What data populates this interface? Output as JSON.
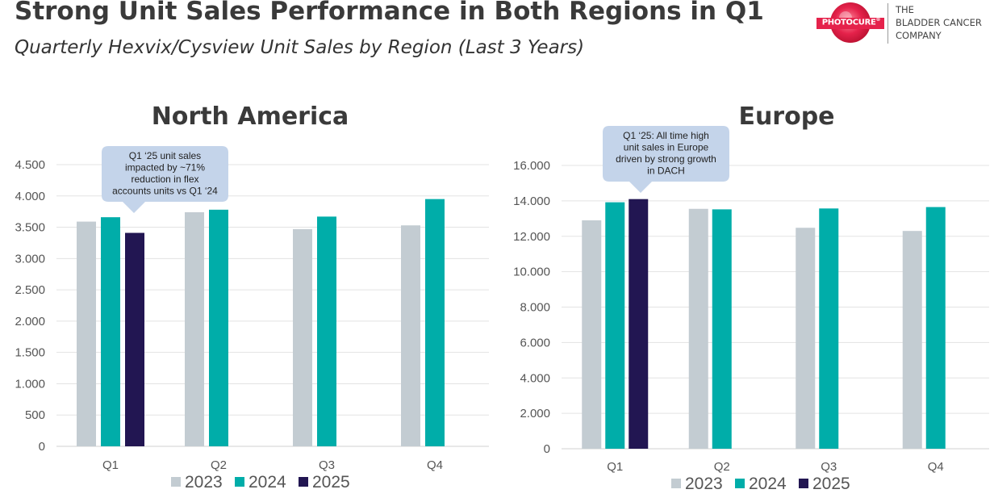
{
  "header": {
    "title": "Strong Unit Sales Performance in Both Regions in Q1",
    "subtitle": "Quarterly Hexvix/Cysview Unit Sales by Region (Last 3 Years)"
  },
  "logo": {
    "wordmark": "PHOTOCURE",
    "registered": "®",
    "tagline": [
      "THE",
      "BLADDER CANCER",
      "COMPANY"
    ],
    "color": "#e5224b"
  },
  "colors": {
    "2023": "#c3ccd2",
    "2024": "#00ada9",
    "2025": "#221652",
    "callout_fill": "#c4d4ea",
    "grid": "#e3e3e3",
    "axis": "#d0d0d0"
  },
  "chart_data": [
    {
      "type": "bar",
      "title": "North America",
      "categories": [
        "Q1",
        "Q2",
        "Q3",
        "Q4"
      ],
      "series": [
        {
          "name": "2023",
          "values": [
            3590,
            3740,
            3470,
            3530
          ]
        },
        {
          "name": "2024",
          "values": [
            3660,
            3780,
            3670,
            3950
          ]
        },
        {
          "name": "2025",
          "values": [
            3410,
            null,
            null,
            null
          ]
        }
      ],
      "ylim": [
        0,
        4500
      ],
      "yticks": [
        0,
        500,
        1000,
        1500,
        2000,
        2500,
        3000,
        3500,
        4000,
        4500
      ],
      "ytick_labels": [
        "0",
        "500",
        "1.000",
        "1.500",
        "2.000",
        "2.500",
        "3.000",
        "3.500",
        "4.000",
        "4.500"
      ],
      "grid": true,
      "legend": "bottom",
      "callout": {
        "target": "Q1 2025",
        "lines": [
          "Q1 ‘25 unit sales",
          "impacted by ~71%",
          "reduction in flex",
          "accounts units vs Q1 ‘24"
        ]
      }
    },
    {
      "type": "bar",
      "title": "Europe",
      "categories": [
        "Q1",
        "Q2",
        "Q3",
        "Q4"
      ],
      "series": [
        {
          "name": "2023",
          "values": [
            12900,
            13550,
            12480,
            12300
          ]
        },
        {
          "name": "2024",
          "values": [
            13920,
            13520,
            13570,
            13650
          ]
        },
        {
          "name": "2025",
          "values": [
            14100,
            null,
            null,
            null
          ]
        }
      ],
      "ylim": [
        0,
        16000
      ],
      "yticks": [
        0,
        2000,
        4000,
        6000,
        8000,
        10000,
        12000,
        14000,
        16000
      ],
      "ytick_labels": [
        "0",
        "2.000",
        "4.000",
        "6.000",
        "8.000",
        "10.000",
        "12.000",
        "14.000",
        "16.000"
      ],
      "grid": true,
      "legend": "bottom",
      "callout": {
        "target": "Q1 2025",
        "lines": [
          "Q1 ‘25: All time high",
          "unit sales in Europe",
          "driven by strong growth",
          "in DACH"
        ]
      }
    }
  ]
}
